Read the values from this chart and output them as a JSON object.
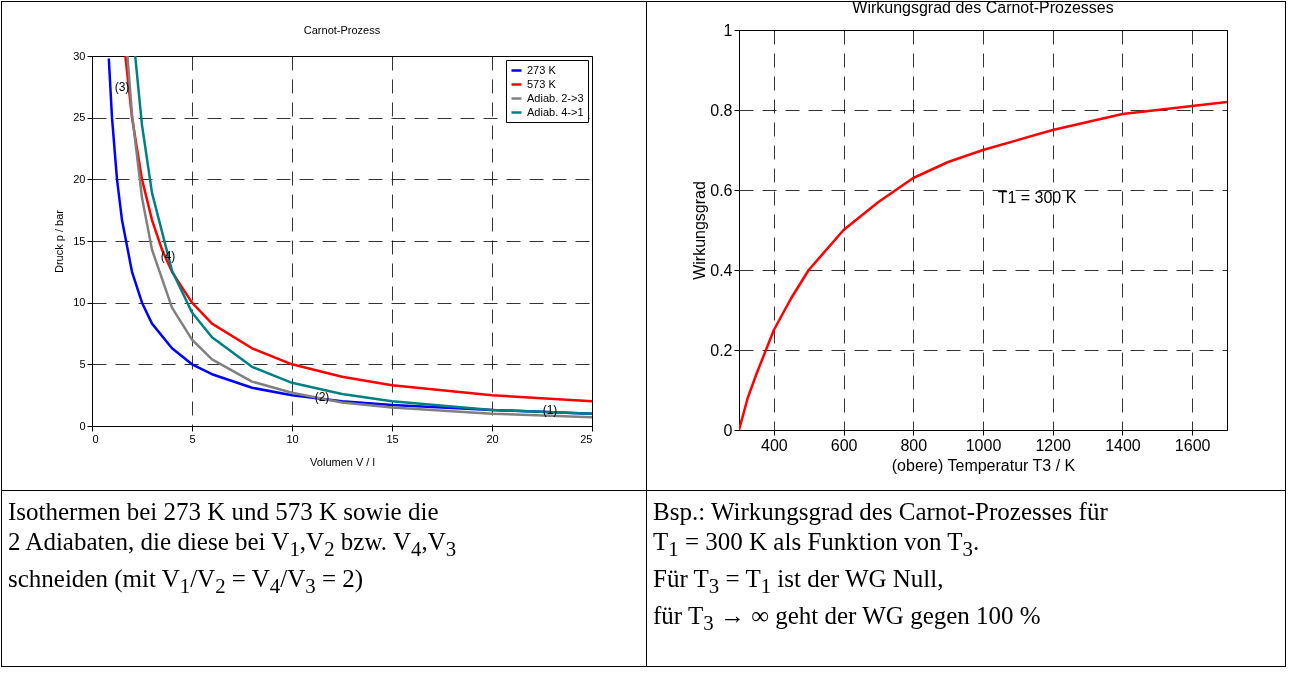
{
  "chart_data": [
    {
      "type": "line",
      "title": "Carnot-Prozess",
      "xlabel": "Volumen V  / l",
      "ylabel": "Druck p / bar",
      "xlim": [
        0,
        25
      ],
      "ylim": [
        0,
        30
      ],
      "xticks": [
        0,
        5,
        10,
        15,
        20,
        25
      ],
      "yticks": [
        0,
        5,
        10,
        15,
        20,
        25,
        30
      ],
      "grid": true,
      "legend": "top right",
      "series": [
        {
          "name": "273 K",
          "color": "#0000ff",
          "x": [
            0.84,
            1,
            1.25,
            1.5,
            2,
            2.5,
            3,
            4,
            5,
            6,
            8,
            10,
            12.5,
            15,
            20,
            25
          ],
          "values": [
            29.8,
            25,
            20,
            16.7,
            12.5,
            10,
            8.3,
            6.3,
            5,
            4.2,
            3.1,
            2.5,
            2,
            1.7,
            1.3,
            1
          ]
        },
        {
          "name": "573 K",
          "color": "#ff0000",
          "x": [
            1.67,
            2,
            2.5,
            3,
            3.5,
            4,
            5,
            6,
            8,
            10,
            12.5,
            15,
            20,
            25
          ],
          "values": [
            30,
            25,
            20,
            16.7,
            14.3,
            12.5,
            10,
            8.3,
            6.3,
            5,
            4,
            3.3,
            2.5,
            2
          ]
        },
        {
          "name": "Adiab. 2->3",
          "color": "#808080",
          "x": [
            1.77,
            2,
            2.5,
            3,
            4,
            5,
            6,
            8,
            10,
            12.5,
            15,
            20,
            25
          ],
          "values": [
            30,
            25.3,
            18.5,
            14.3,
            9.6,
            7,
            5.4,
            3.6,
            2.7,
            1.9,
            1.5,
            1,
            0.7
          ]
        },
        {
          "name": "Adiab. 4->1",
          "color": "#008080",
          "x": [
            2.16,
            2.5,
            3,
            4,
            5,
            6,
            8,
            10,
            12.5,
            15,
            20,
            25
          ],
          "values": [
            30,
            24.4,
            18.9,
            12.6,
            9.2,
            7.2,
            4.8,
            3.5,
            2.6,
            2,
            1.3,
            1
          ]
        }
      ],
      "annotations": [
        {
          "text": "(1)",
          "x": 23,
          "y": 1.1
        },
        {
          "text": "(2)",
          "x": 11.6,
          "y": 2.15
        },
        {
          "text": "(3)",
          "x": 1.6,
          "y": 27.3
        },
        {
          "text": "(4)",
          "x": 3.9,
          "y": 13.6
        },
        "Isothermen bei 273 K und 573 K sowie die",
        "2 Adiabaten, die diese bei V$_{1}$,V$_{2}$ bzw. V$_{4}$,V$_{3}$",
        "schneiden (mit V$_{1}$/V$_{2}$ = V$_{4}$/V$_{3}$ = 2)"
      ]
    },
    {
      "type": "line",
      "title": "Wirkungsgrad des Carnot-Prozesses",
      "xlabel": "(obere) Temperatur T3  / K",
      "ylabel": "Wirkungsgrad",
      "xlim": [
        300,
        1700
      ],
      "ylim": [
        0,
        1
      ],
      "xticks": [
        400,
        600,
        800,
        1000,
        1200,
        1400,
        1600
      ],
      "yticks": [
        0,
        0.2,
        0.4,
        0.6,
        0.8,
        1
      ],
      "grid": true,
      "series": [
        {
          "color": "#ff0000",
          "x": [
            300,
            325,
            350,
            400,
            450,
            500,
            600,
            700,
            800,
            900,
            1000,
            1200,
            1400,
            1600,
            1700
          ],
          "values": [
            0,
            0.08,
            0.14,
            0.25,
            0.33,
            0.4,
            0.5,
            0.57,
            0.63,
            0.67,
            0.7,
            0.75,
            0.79,
            0.81,
            0.82
          ]
        }
      ],
      "annotations": [
        "T1 = 300 K",
        "Bsp.: Wirkungsgrad des Carnot-Prozesses für",
        "T$_{1}$ = 300 K als Funktion von T$_{3}$.",
        "Für T$_{3}$ = T$_{1}$ ist der WG Null,",
        "für T$_{3}$ → ∞ geht der WG gegen 100 %"
      ]
    }
  ]
}
